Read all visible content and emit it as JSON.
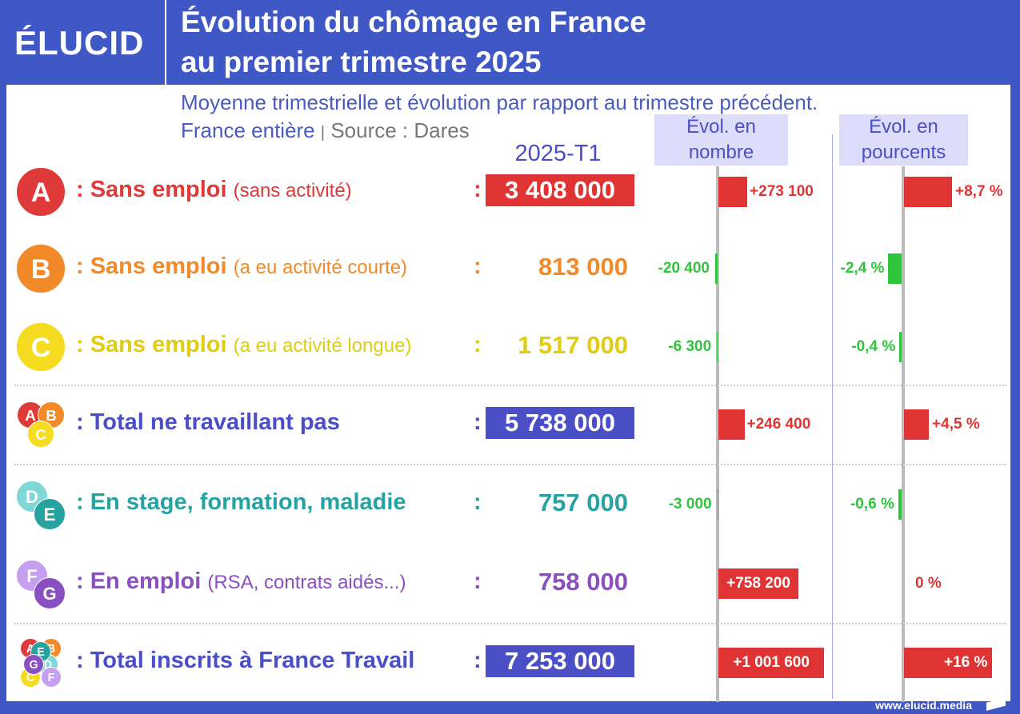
{
  "brand": {
    "logo": "ÉLUCID",
    "site": "www.elucid.media"
  },
  "header": {
    "title_line1": "Évolution du chômage en France",
    "title_line2": "au premier trimestre 2025",
    "subtitle": "Moyenne trimestrielle et évolution par rapport au trimestre précédent.",
    "scope": "France entière",
    "sep": "|",
    "source": "Source : Dares"
  },
  "colors": {
    "frame": "#3f58c6",
    "positive": "#e03434",
    "negative": "#2ec43c",
    "A": "#de3a3a",
    "B": "#f28a2a",
    "C": "#f5dc20",
    "D": "#7fd8d8",
    "E": "#26a3a0",
    "F": "#c79ff0",
    "G": "#8a4fc0",
    "total": "#4a4fc8"
  },
  "chart_data": {
    "type": "bar",
    "period": "2025-T1",
    "columns": {
      "number": "Évol. en nombre",
      "percent": "Évol. en pourcents"
    },
    "rows": [
      {
        "badge": [
          "A"
        ],
        "label": ": Sans emploi",
        "paren": "(sans activité)",
        "value": "3 408 000",
        "boxed": "red",
        "color": "#de3a3a",
        "delta": 273100,
        "delta_label": "+273 100",
        "pct": 8.7,
        "pct_label": "+8,7 %"
      },
      {
        "badge": [
          "B"
        ],
        "label": ": Sans emploi",
        "paren": "(a eu activité courte)",
        "value": "813 000",
        "boxed": "",
        "color": "#f28a2a",
        "delta": -20400,
        "delta_label": "-20 400",
        "pct": -2.4,
        "pct_label": "-2,4 %"
      },
      {
        "badge": [
          "C"
        ],
        "label": ": Sans emploi",
        "paren": "(a eu activité longue)",
        "value": "1 517 000",
        "boxed": "",
        "color": "#e0cc10",
        "delta": -6300,
        "delta_label": "-6 300",
        "pct": -0.4,
        "pct_label": "-0,4 %"
      },
      {
        "badge": [
          "A",
          "B",
          "C"
        ],
        "label": ": Total ne travaillant pas",
        "paren": "",
        "value": "5 738 000",
        "boxed": "blue",
        "color": "#4a4fc8",
        "delta": 246400,
        "delta_label": "+246 400",
        "pct": 4.5,
        "pct_label": "+4,5 %"
      },
      {
        "badge": [
          "D",
          "E"
        ],
        "label": ": En stage, formation, maladie",
        "paren": "",
        "value": "757 000",
        "boxed": "",
        "color": "#26a3a0",
        "delta": -3000,
        "delta_label": "-3 000",
        "pct": -0.6,
        "pct_label": "-0,6 %"
      },
      {
        "badge": [
          "F",
          "G"
        ],
        "label": ": En emploi",
        "paren": "(RSA, contrats aidés...)",
        "value": "758 000",
        "boxed": "",
        "color": "#8a4fc0",
        "delta": 758200,
        "delta_label": "+758 200",
        "pct": 0,
        "pct_label": "0 %"
      },
      {
        "badge": [
          "A",
          "B",
          "C",
          "D",
          "E",
          "F",
          "G"
        ],
        "label": ": Total inscrits à France Travail",
        "paren": "",
        "value": "7 253 000",
        "boxed": "blue",
        "color": "#4a4fc8",
        "delta": 1001600,
        "delta_label": "+1 001 600",
        "pct": 16,
        "pct_label": "+16 %"
      }
    ]
  }
}
